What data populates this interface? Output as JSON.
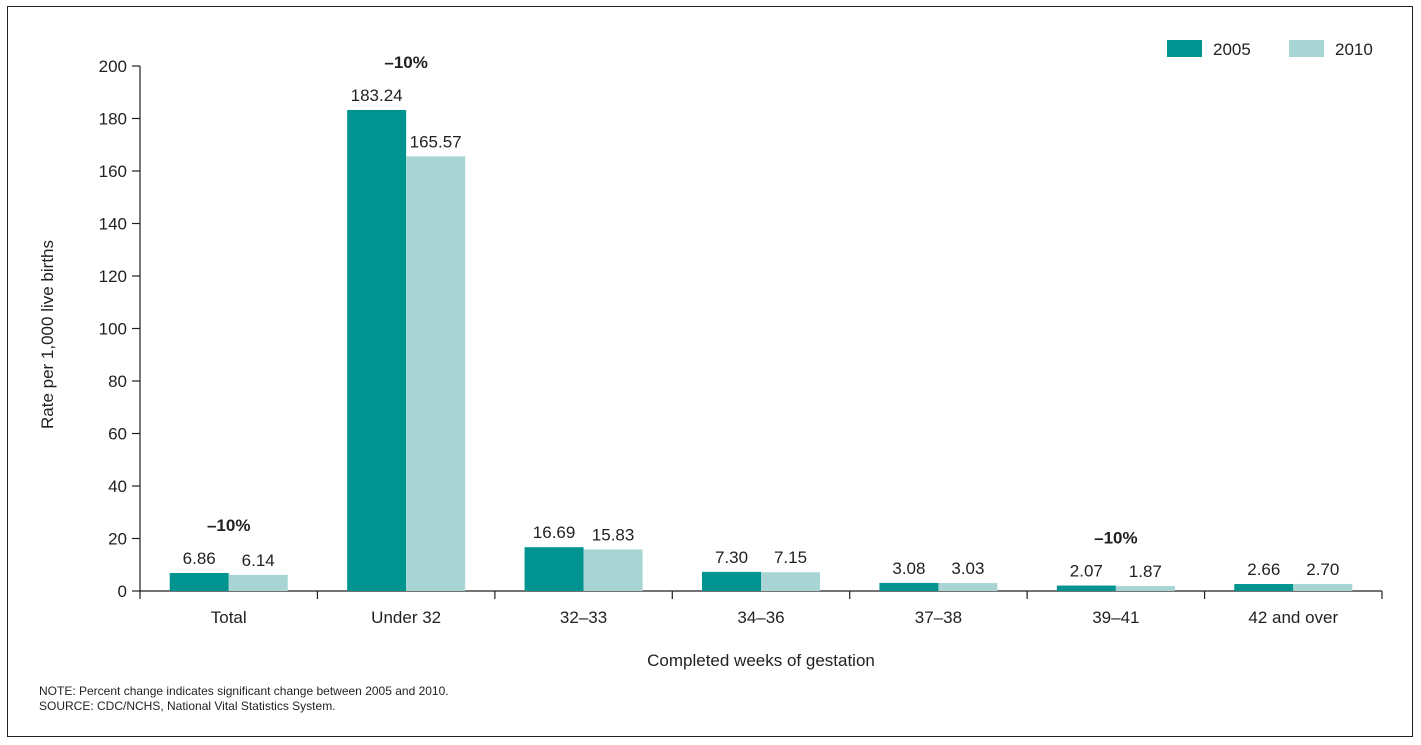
{
  "chart_data": {
    "type": "bar",
    "categories": [
      "Total",
      "Under 32",
      "32–33",
      "34–36",
      "37–38",
      "39–41",
      "42 and over"
    ],
    "series": [
      {
        "name": "2005",
        "color": "#009490",
        "values": [
          6.86,
          183.24,
          16.69,
          7.3,
          3.08,
          2.07,
          2.66
        ],
        "labels": [
          "6.86",
          "183.24",
          "16.69",
          "7.30",
          "3.08",
          "2.07",
          "2.66"
        ]
      },
      {
        "name": "2010",
        "color": "#a8d5d3",
        "values": [
          6.14,
          165.57,
          15.83,
          7.15,
          3.03,
          1.87,
          2.7
        ],
        "labels": [
          "6.14",
          "165.57",
          "15.83",
          "7.15",
          "3.03",
          "1.87",
          "2.70"
        ]
      }
    ],
    "annotations": [
      {
        "category": "Total",
        "text": "–10%"
      },
      {
        "category": "Under 32",
        "text": "–10%"
      },
      {
        "category": "39–41",
        "text": "–10%"
      }
    ],
    "xlabel": "Completed weeks of gestation",
    "ylabel": "Rate per 1,000 live births",
    "ylim": [
      0,
      200
    ],
    "yticks": [
      0,
      20,
      40,
      60,
      80,
      100,
      120,
      140,
      160,
      180,
      200
    ],
    "grid": false,
    "legend_position": "top-right"
  },
  "notes": {
    "note": "NOTE: Percent change indicates significant change between 2005 and 2010.",
    "source": "SOURCE: CDC/NCHS, National Vital Statistics System."
  }
}
